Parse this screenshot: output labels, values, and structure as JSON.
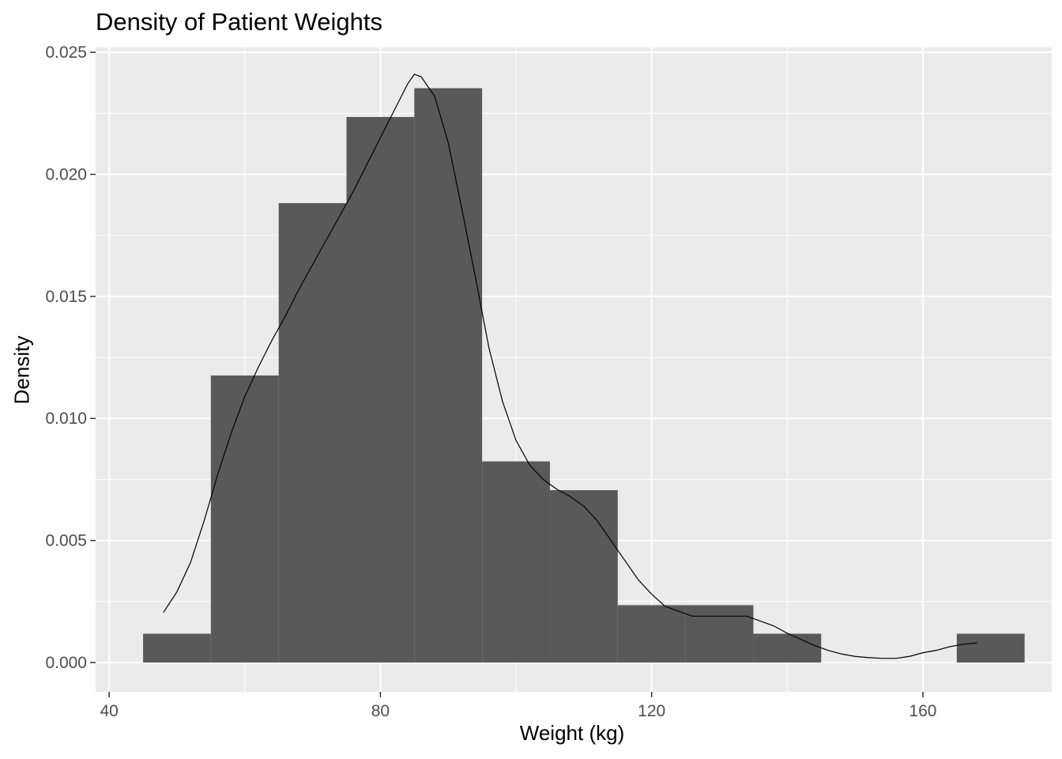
{
  "chart_data": {
    "type": "bar",
    "title": "Density of Patient Weights",
    "xlabel": "Weight (kg)",
    "ylabel": "Density",
    "xlim": [
      38,
      179
    ],
    "ylim": [
      -0.0012,
      0.0252
    ],
    "x_ticks": [
      40,
      80,
      120,
      160
    ],
    "x_tick_labels": [
      "40",
      "80",
      "120",
      "160"
    ],
    "y_ticks": [
      0.0,
      0.005,
      0.01,
      0.015,
      0.02,
      0.025
    ],
    "y_tick_labels": [
      "0.000",
      "0.005",
      "0.010",
      "0.015",
      "0.020",
      "0.025"
    ],
    "grid": true,
    "colors": {
      "panel": "#ebebeb",
      "grid": "#ffffff",
      "bars": "#595959",
      "density_line": "#000000",
      "text": "#4d4d4d"
    },
    "bins": [
      {
        "x_start": 45,
        "x_end": 55,
        "density": 0.00118
      },
      {
        "x_start": 55,
        "x_end": 65,
        "density": 0.01176
      },
      {
        "x_start": 65,
        "x_end": 75,
        "density": 0.01882
      },
      {
        "x_start": 75,
        "x_end": 85,
        "density": 0.02235
      },
      {
        "x_start": 85,
        "x_end": 95,
        "density": 0.02353
      },
      {
        "x_start": 95,
        "x_end": 105,
        "density": 0.00824
      },
      {
        "x_start": 105,
        "x_end": 115,
        "density": 0.00706
      },
      {
        "x_start": 115,
        "x_end": 125,
        "density": 0.00235
      },
      {
        "x_start": 125,
        "x_end": 135,
        "density": 0.00235
      },
      {
        "x_start": 135,
        "x_end": 145,
        "density": 0.00118
      },
      {
        "x_start": 145,
        "x_end": 155,
        "density": 0.0
      },
      {
        "x_start": 155,
        "x_end": 165,
        "density": 0.0
      },
      {
        "x_start": 165,
        "x_end": 175,
        "density": 0.00118
      }
    ],
    "density_curve": {
      "x": [
        48,
        50,
        52,
        54,
        56,
        58,
        60,
        62,
        64,
        66,
        68,
        70,
        72,
        74,
        76,
        78,
        80,
        82,
        84,
        85,
        86,
        88,
        90,
        92,
        94,
        96,
        98,
        100,
        102,
        104,
        106,
        108,
        110,
        112,
        114,
        116,
        118,
        120,
        122,
        124,
        126,
        128,
        130,
        132,
        134,
        136,
        138,
        140,
        142,
        144,
        146,
        148,
        150,
        152,
        154,
        156,
        158,
        160,
        162,
        164,
        166,
        168
      ],
      "y": [
        0.00205,
        0.0029,
        0.0041,
        0.0058,
        0.0077,
        0.0094,
        0.0109,
        0.0121,
        0.0132,
        0.0142,
        0.0153,
        0.0163,
        0.0173,
        0.0183,
        0.0193,
        0.0204,
        0.0215,
        0.0226,
        0.0237,
        0.0241,
        0.024,
        0.0232,
        0.0213,
        0.0186,
        0.0158,
        0.0129,
        0.0107,
        0.0091,
        0.0081,
        0.0075,
        0.0071,
        0.0068,
        0.0064,
        0.0058,
        0.005,
        0.0042,
        0.0034,
        0.0028,
        0.0023,
        0.0021,
        0.0019,
        0.0019,
        0.0019,
        0.0019,
        0.0019,
        0.0017,
        0.0015,
        0.0012,
        0.00095,
        0.0007,
        0.0005,
        0.00035,
        0.00025,
        0.0002,
        0.00017,
        0.00017,
        0.00025,
        0.0004,
        0.0005,
        0.00065,
        0.00075,
        0.0008
      ]
    }
  }
}
